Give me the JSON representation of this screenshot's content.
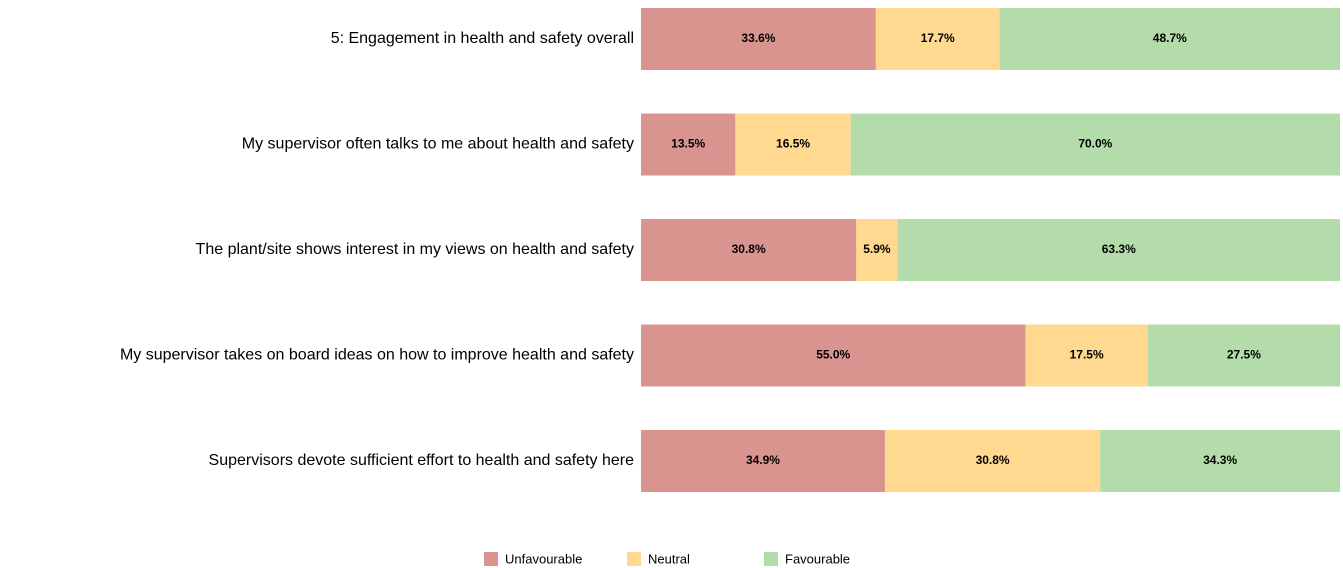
{
  "chart_data": {
    "type": "stacked-barh",
    "categories": [
      "5: Engagement in health and safety overall",
      "My supervisor often talks to me about health and safety",
      "The plant/site shows interest in my views on health and safety",
      "My supervisor takes on board ideas on how to improve health and safety",
      "Supervisors devote sufficient effort to health and safety here"
    ],
    "series": [
      {
        "name": "Unfavourable",
        "color": "#d9948f",
        "values": [
          33.6,
          13.5,
          30.8,
          55.0,
          34.9
        ],
        "value_labels": [
          "33.6%",
          "13.5%",
          "30.8%",
          "55.0%",
          "34.9%"
        ]
      },
      {
        "name": "Neutral",
        "color": "#ffd98f",
        "values": [
          17.7,
          16.5,
          5.9,
          17.5,
          30.8
        ],
        "value_labels": [
          "17.7%",
          "16.5%",
          "5.9%",
          "17.5%",
          "30.8%"
        ]
      },
      {
        "name": "Favourable",
        "color": "#b3dcaa",
        "values": [
          48.7,
          70.0,
          63.3,
          27.5,
          34.3
        ],
        "value_labels": [
          "48.7%",
          "70.0%",
          "63.3%",
          "27.5%",
          "34.3%"
        ]
      }
    ],
    "xlim": [
      0,
      100
    ],
    "legend": "bottom"
  }
}
